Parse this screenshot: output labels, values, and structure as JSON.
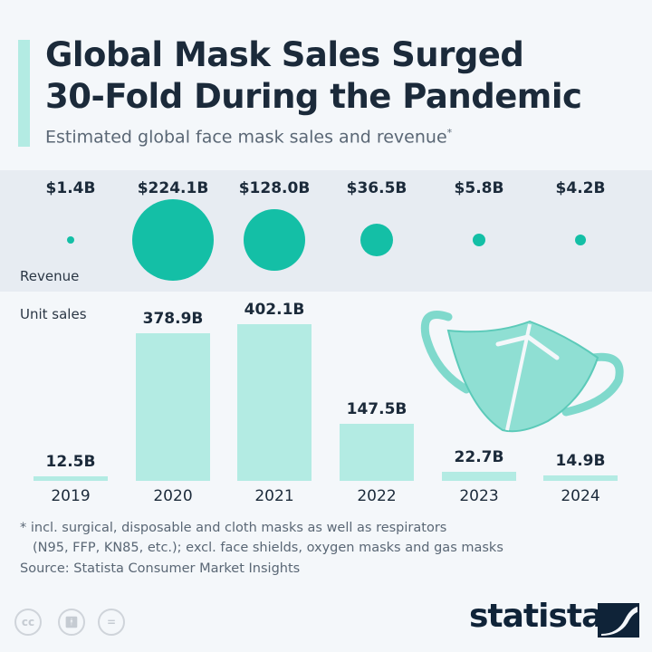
{
  "header": {
    "title_line1": "Global Mask Sales Surged",
    "title_line2": "30-Fold During the Pandemic",
    "subtitle": "Estimated global face mask sales and revenue",
    "subtitle_mark": "*"
  },
  "chart_data": {
    "type": "bar",
    "categories": [
      "2019",
      "2020",
      "2021",
      "2022",
      "2023",
      "2024"
    ],
    "series": [
      {
        "name": "Revenue",
        "display": "bubble",
        "unit": "USD billions",
        "values": [
          1.4,
          224.1,
          128.0,
          36.5,
          5.8,
          4.2
        ],
        "labels": [
          "$1.4B",
          "$224.1B",
          "$128.0B",
          "$36.5B",
          "$5.8B",
          "$4.2B"
        ]
      },
      {
        "name": "Unit sales",
        "display": "bar",
        "unit": "billions",
        "values": [
          12.5,
          378.9,
          402.1,
          147.5,
          22.7,
          14.9
        ],
        "labels": [
          "12.5B",
          "378.9B",
          "402.1B",
          "147.5B",
          "22.7B",
          "14.9B"
        ]
      }
    ],
    "colors": {
      "revenue": "#14bfa6",
      "unit_sales": "#b3ebe3"
    },
    "grid": false
  },
  "footer": {
    "note_line1": "* incl. surgical, disposable and cloth masks as well as respirators",
    "note_line2": "(N95, FFP, KN85, etc.); excl. face shields, oxygen masks and gas masks",
    "source": "Source: Statista Consumer Market Insights",
    "cc_icons": [
      "cc",
      "by",
      "nd"
    ],
    "logo": "statista"
  }
}
